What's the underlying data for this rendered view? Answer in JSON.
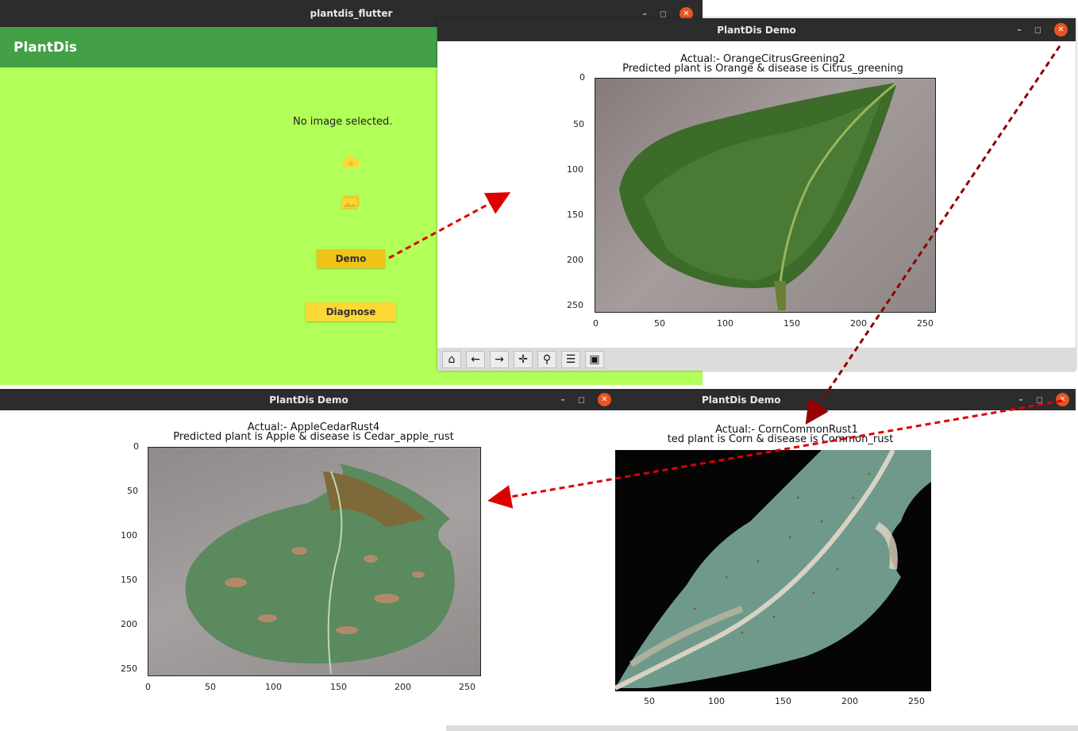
{
  "flutter_window": {
    "title": "plantdis_flutter",
    "app_title": "PlantDis",
    "status_text": "No image selected.",
    "camera_icon": "camera-icon",
    "gallery_icon": "gallery-icon",
    "demo_button": "Demo",
    "diagnose_button": "Diagnose"
  },
  "demo_windows": [
    {
      "title": "PlantDis Demo",
      "plot_title_line1": "Actual:- OrangeCitrusGreening2",
      "plot_title_line2": "Predicted plant is Orange & disease is Citrus_greening",
      "y_ticks": [
        "0",
        "50",
        "100",
        "150",
        "200",
        "250"
      ],
      "x_ticks": [
        "0",
        "50",
        "100",
        "150",
        "200",
        "250"
      ]
    },
    {
      "title": "PlantDis Demo",
      "plot_title_line1": "Actual:- AppleCedarRust4",
      "plot_title_line2": "Predicted plant is Apple & disease is Cedar_apple_rust",
      "y_ticks": [
        "0",
        "50",
        "100",
        "150",
        "200",
        "250"
      ],
      "x_ticks": [
        "0",
        "50",
        "100",
        "150",
        "200",
        "250"
      ]
    },
    {
      "title": "PlantDis Demo",
      "plot_title_line1": "Actual:- CornCommonRust1",
      "plot_title_line2": "ted plant is Corn & disease is Common_rust",
      "x_ticks": [
        "50",
        "100",
        "150",
        "200",
        "250"
      ]
    }
  ],
  "window_controls": {
    "minimize_icon": "minimize-icon",
    "restore_icon": "restore-icon",
    "close_icon": "close-icon"
  },
  "toolbar_icons": [
    "home-icon",
    "back-arrow-icon",
    "forward-arrow-icon",
    "pan-icon",
    "zoom-icon",
    "configure-subplots-icon",
    "save-icon"
  ],
  "colors": {
    "flutter_appbar": "#43a047",
    "flutter_background": "#b2ff59",
    "button_yellow": "#fdd835",
    "titlebar": "#2c2c2c",
    "close_button": "#e95420",
    "arrow": "#cc0000"
  }
}
